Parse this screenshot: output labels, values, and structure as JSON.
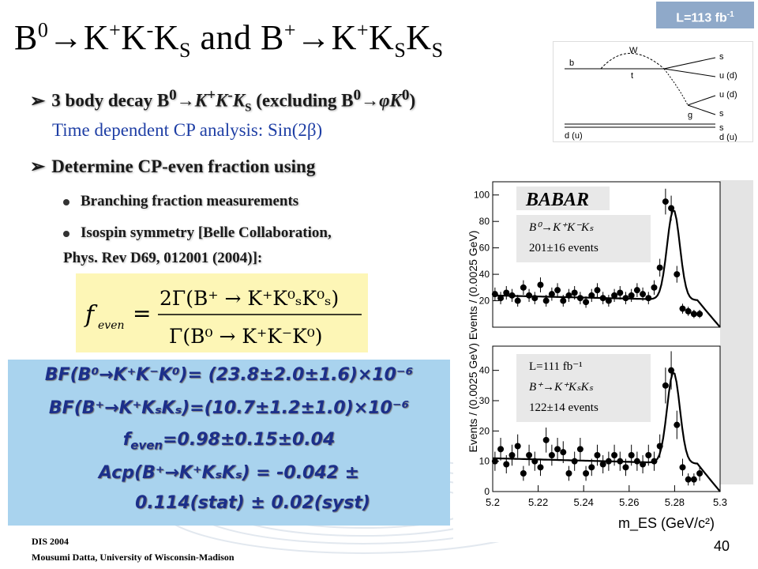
{
  "badge": {
    "lumi": "L=113 fb",
    "lumi_sup": "-1"
  },
  "title": {
    "part1": "B",
    "part1_sup": "0",
    "part2": "→K",
    "part2_sup": "+",
    "part3": "K",
    "part3_sup": "-",
    "part4": "K",
    "part4_sub": "S",
    "part5": " and B",
    "part5_sup": "+",
    "part6": "→K",
    "part6_sup": "+",
    "part7": "K",
    "part7_sub": "S",
    "part8": "K",
    "part8_sub": "S"
  },
  "bullets": {
    "b1_prefix": "3 body decay B",
    "b1_mid": "→K",
    "b1_mid2": "K",
    "b1_mid3": "K",
    "b1_excl": " (excluding B",
    "b1_end": "→φK",
    "b1_close": ")",
    "time_dep": "Time dependent CP analysis: Sin(2β)",
    "b2": "Determine CP-even fraction using",
    "sub1": "Branching fraction measurements",
    "sub2": "Isospin symmetry  [Belle Collaboration,",
    "ref": "Phys. Rev D69, 012001 (2004)]:"
  },
  "formula": {
    "lhs": "f",
    "lhs_sub": "even",
    "eq": "=",
    "num": "2Γ(B⁺  →  K⁺K⁰ₛK⁰ₛ)",
    "den": "Γ(B⁰  →  K⁺K⁻K⁰)"
  },
  "results": {
    "bf1": "BF(B⁰→K⁺K⁻K⁰)= (23.8±2.0±1.6)×10⁻⁶",
    "bf2": "BF(B⁺→K⁺KₛKₛ)=(10.7±1.2±1.0)×10⁻⁶",
    "feven": "f",
    "feven_sub": "even",
    "feven_val": "=0.98±0.15±0.04",
    "acp1": "Acp(B⁺→K⁺KₛKₛ) = -0.042 ±",
    "acp2": "0.114(stat) ± 0.02(syst)"
  },
  "footer": {
    "conf": "DIS 2004",
    "author": "Mousumi Datta, University of Wisconsin-Madison",
    "page": "40"
  },
  "feynman": {
    "labels": [
      "b",
      "W",
      "t",
      "g",
      "s",
      "u (d)",
      "u (d)",
      "s",
      "s",
      "d (u)",
      "d (u)"
    ]
  },
  "chart_data": {
    "type": "scatter",
    "xlabel": "m_ES (GeV/c²)",
    "x_ticks": [
      "5.2",
      "5.22",
      "5.24",
      "5.26",
      "5.28",
      "5.3"
    ],
    "panels": [
      {
        "ylabel": "Events / (0.0025 GeV)",
        "y_ticks": [
          "20",
          "40",
          "60",
          "80",
          "100"
        ],
        "ylim": [
          0,
          110
        ],
        "logo": "BABAR",
        "legend_line1": "B⁰→K⁺K⁻Kₛ",
        "legend_line2": "201±16 events",
        "x": [
          5.201,
          5.2035,
          5.206,
          5.2085,
          5.211,
          5.2135,
          5.216,
          5.2185,
          5.221,
          5.2235,
          5.226,
          5.2285,
          5.231,
          5.2335,
          5.236,
          5.2385,
          5.241,
          5.2435,
          5.246,
          5.2485,
          5.251,
          5.2535,
          5.256,
          5.2585,
          5.261,
          5.2635,
          5.266,
          5.2685,
          5.271,
          5.2735,
          5.276,
          5.2785,
          5.281,
          5.2835,
          5.286,
          5.2885,
          5.291
        ],
        "y": [
          25,
          22,
          26,
          24,
          20,
          30,
          24,
          22,
          32,
          20,
          25,
          28,
          20,
          24,
          26,
          22,
          19,
          24,
          28,
          22,
          20,
          24,
          26,
          22,
          24,
          28,
          25,
          22,
          30,
          45,
          95,
          90,
          40,
          14,
          12,
          10,
          10
        ]
      },
      {
        "ylabel": "Events / (0.0025 GeV)",
        "y_ticks": [
          "0",
          "10",
          "20",
          "30",
          "40"
        ],
        "ylim": [
          0,
          48
        ],
        "legend_line0": "L=111 fb⁻¹",
        "legend_line1": "B⁺→K⁺KₛKₛ",
        "legend_line2": "122±14 events",
        "x": [
          5.201,
          5.2035,
          5.206,
          5.2085,
          5.211,
          5.2135,
          5.216,
          5.2185,
          5.221,
          5.2235,
          5.226,
          5.2285,
          5.231,
          5.2335,
          5.236,
          5.2385,
          5.241,
          5.2435,
          5.246,
          5.2485,
          5.251,
          5.2535,
          5.256,
          5.2585,
          5.261,
          5.2635,
          5.266,
          5.2685,
          5.271,
          5.2735,
          5.276,
          5.2785,
          5.281,
          5.2835,
          5.286,
          5.2885,
          5.291
        ],
        "y": [
          10,
          14,
          9,
          12,
          15,
          6,
          12,
          10,
          8,
          17,
          12,
          14,
          13,
          6,
          10,
          14,
          6,
          8,
          12,
          9,
          10,
          12,
          10,
          8,
          12,
          10,
          9,
          12,
          10,
          15,
          35,
          40,
          22,
          8,
          4,
          4,
          6
        ]
      }
    ]
  }
}
